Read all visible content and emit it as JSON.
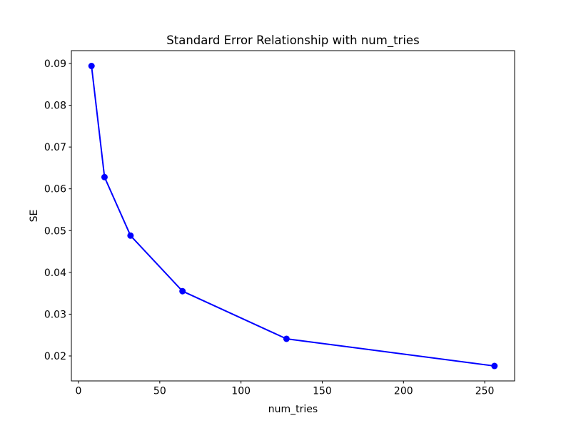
{
  "chart_data": {
    "type": "line",
    "title": "Standard Error Relationship with num_tries",
    "xlabel": "num_tries",
    "ylabel": "SE",
    "x": [
      8,
      16,
      32,
      64,
      128,
      256
    ],
    "y": [
      0.0894,
      0.0628,
      0.0488,
      0.0355,
      0.0241,
      0.0176
    ],
    "xlim": [
      -4.4,
      268.4
    ],
    "ylim": [
      0.014025,
      0.09307
    ],
    "xticks": {
      "values": [
        0,
        50,
        100,
        150,
        200,
        250
      ],
      "labels": [
        "0",
        "50",
        "100",
        "150",
        "200",
        "250"
      ]
    },
    "yticks": {
      "values": [
        0.02,
        0.03,
        0.04,
        0.05,
        0.06,
        0.07,
        0.08,
        0.09
      ],
      "labels": [
        "0.02",
        "0.03",
        "0.04",
        "0.05",
        "0.06",
        "0.07",
        "0.08",
        "0.09"
      ]
    },
    "line_color": "#0000ff",
    "marker": "o",
    "grid": false,
    "background_color": "#ffffff",
    "spine_color": "#000000"
  }
}
